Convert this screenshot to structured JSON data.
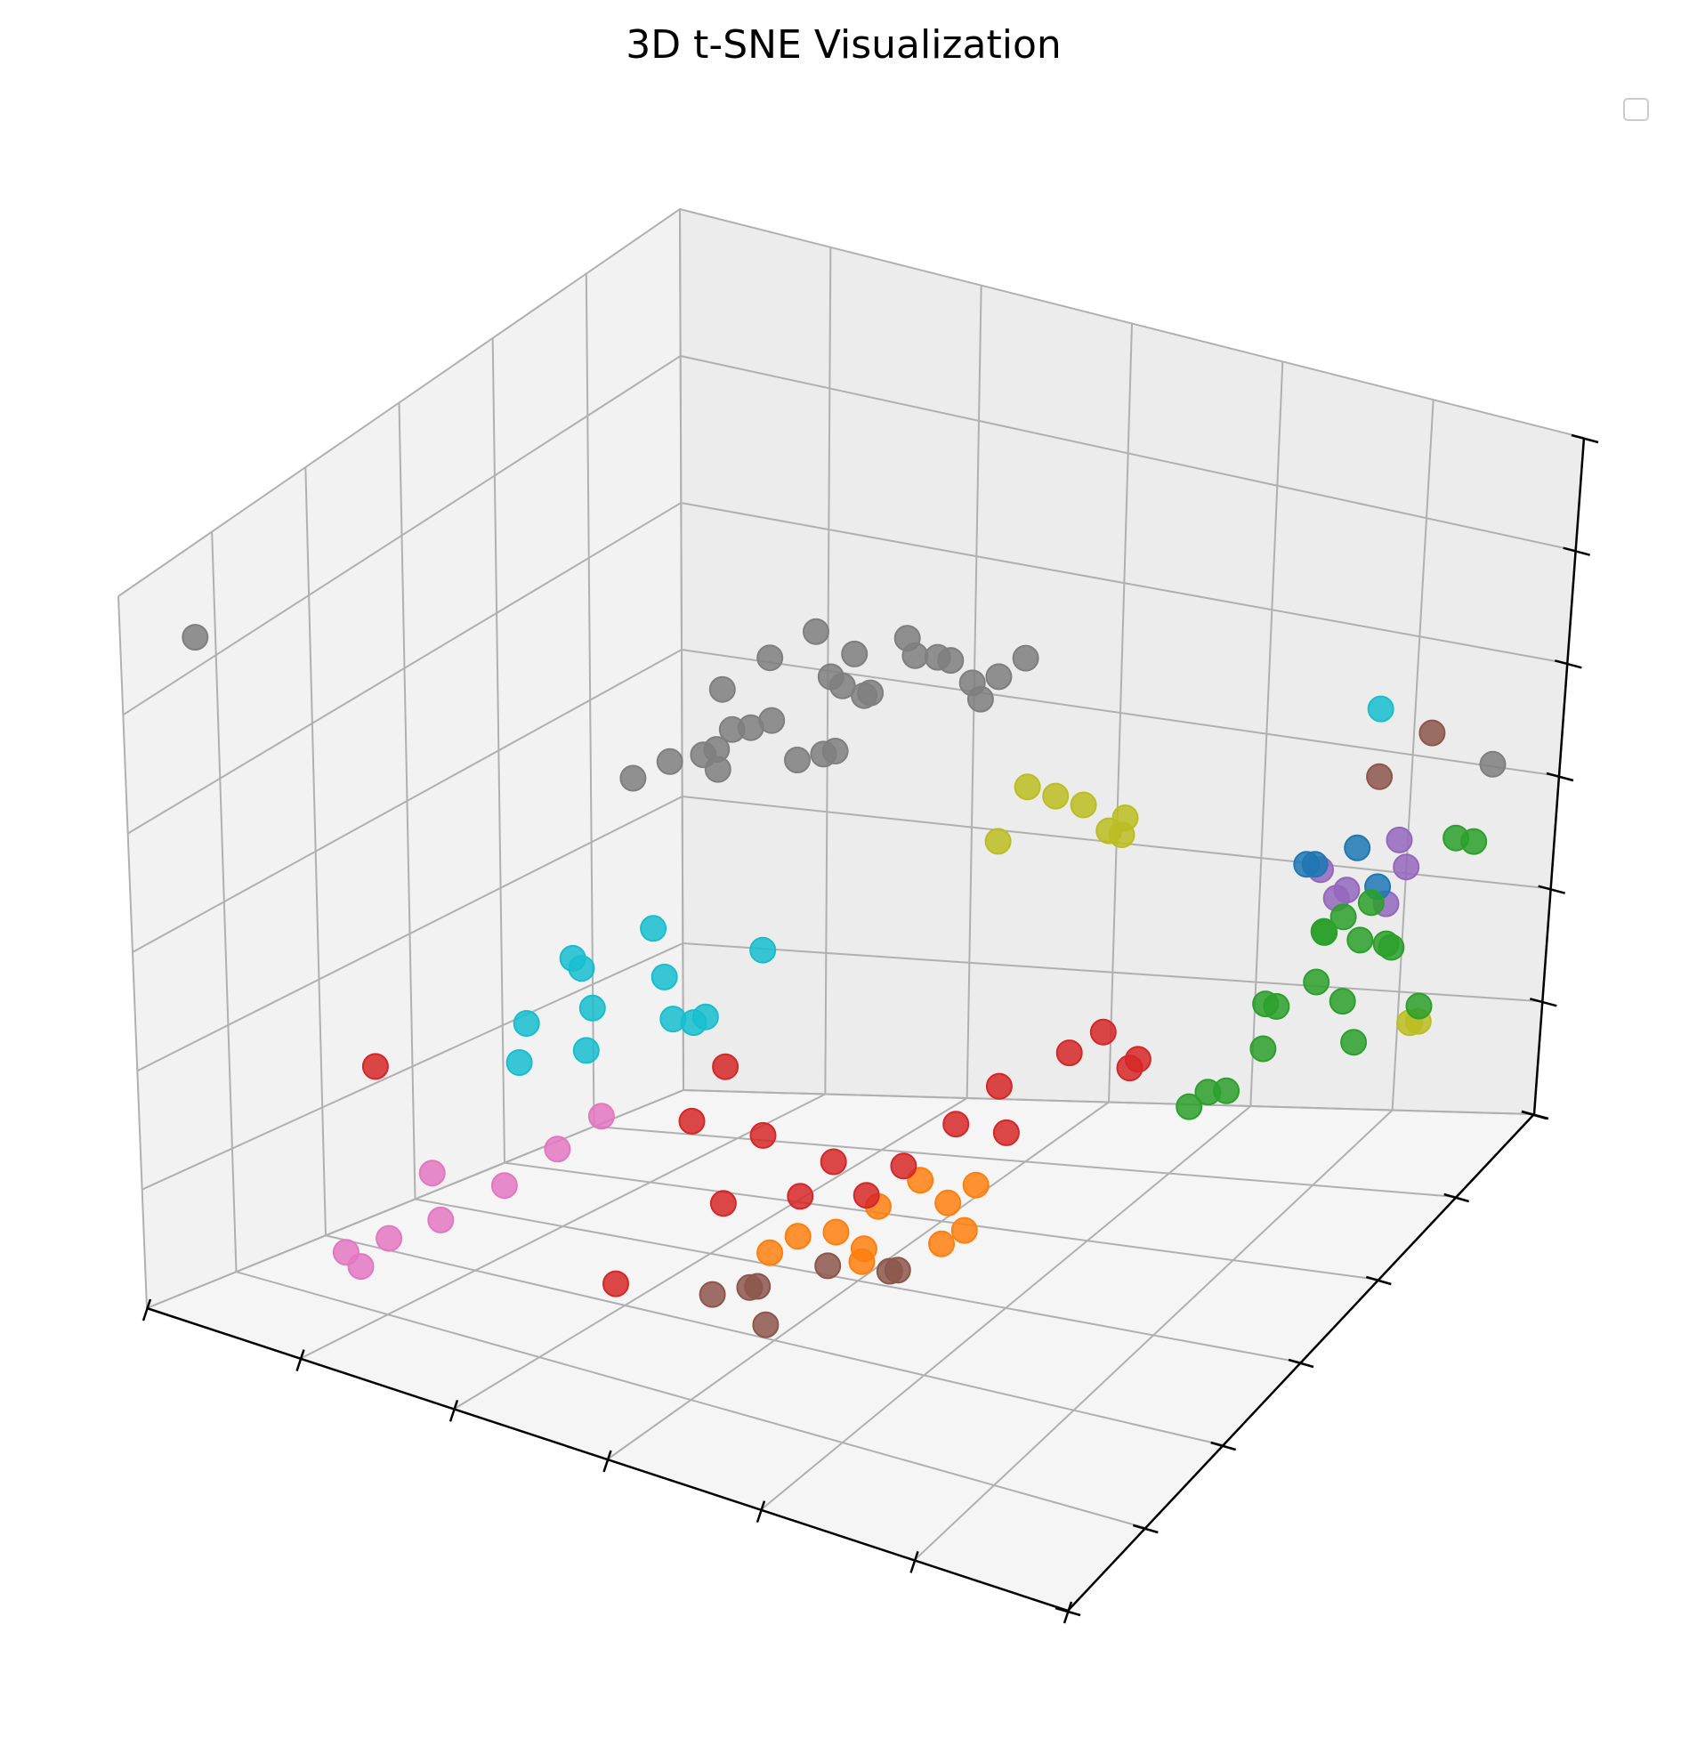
{
  "chart_data": {
    "type": "scatter",
    "projection": "3d",
    "title": "3D t-SNE Visualization",
    "xlabel": "",
    "ylabel": "",
    "zlabel": "",
    "tick_labels_shown": false,
    "grid": true,
    "legend": {
      "placement": "top-right",
      "entries": []
    },
    "xlim": [
      0,
      1
    ],
    "ylim": [
      0,
      1
    ],
    "zlim": [
      0,
      1
    ],
    "colors": {
      "blue": "#1f77b4",
      "orange": "#ff7f0e",
      "green": "#2ca02c",
      "red": "#d62728",
      "purple": "#9467bd",
      "brown": "#8c564b",
      "pink": "#e377c2",
      "gray": "#7f7f7f",
      "olive": "#bcbd22",
      "cyan": "#17becf"
    },
    "series": [
      {
        "color_key": "gray",
        "points": [
          [
            0.4,
            0.5,
            0.85
          ],
          [
            0.45,
            0.55,
            0.8
          ],
          [
            0.48,
            0.52,
            0.88
          ],
          [
            0.42,
            0.58,
            0.78
          ],
          [
            0.5,
            0.6,
            0.83
          ],
          [
            0.52,
            0.55,
            0.9
          ],
          [
            0.38,
            0.62,
            0.8
          ],
          [
            0.55,
            0.58,
            0.86
          ],
          [
            0.47,
            0.48,
            0.76
          ],
          [
            0.35,
            0.55,
            0.7
          ],
          [
            0.3,
            0.6,
            0.65
          ],
          [
            0.43,
            0.5,
            0.72
          ],
          [
            0.58,
            0.62,
            0.82
          ],
          [
            0.6,
            0.55,
            0.85
          ],
          [
            0.36,
            0.48,
            0.8
          ],
          [
            0.33,
            0.52,
            0.68
          ],
          [
            0.28,
            0.58,
            0.62
          ],
          [
            0.54,
            0.64,
            0.78
          ],
          [
            0.62,
            0.6,
            0.88
          ],
          [
            0.5,
            0.45,
            0.8
          ],
          [
            0.39,
            0.42,
            0.74
          ],
          [
            0.57,
            0.52,
            0.92
          ],
          [
            0.25,
            0.5,
            0.62
          ],
          [
            0.44,
            0.62,
            0.74
          ],
          [
            0.41,
            0.66,
            0.7
          ],
          [
            0.46,
            0.4,
            0.86
          ],
          [
            0.32,
            0.45,
            0.7
          ],
          [
            0.05,
            0.05,
            0.95
          ],
          [
            0.95,
            0.95,
            0.55
          ]
        ]
      },
      {
        "color_key": "cyan",
        "points": [
          [
            0.3,
            0.3,
            0.5
          ],
          [
            0.35,
            0.25,
            0.48
          ],
          [
            0.28,
            0.35,
            0.45
          ],
          [
            0.4,
            0.3,
            0.52
          ],
          [
            0.33,
            0.4,
            0.5
          ],
          [
            0.38,
            0.35,
            0.42
          ],
          [
            0.26,
            0.28,
            0.4
          ],
          [
            0.42,
            0.32,
            0.45
          ],
          [
            0.36,
            0.22,
            0.44
          ],
          [
            0.31,
            0.18,
            0.42
          ],
          [
            0.45,
            0.4,
            0.52
          ],
          [
            0.41,
            0.36,
            0.43
          ],
          [
            0.9,
            0.8,
            0.75
          ]
        ]
      },
      {
        "color_key": "olive",
        "points": [
          [
            0.6,
            0.7,
            0.6
          ],
          [
            0.62,
            0.72,
            0.58
          ],
          [
            0.58,
            0.68,
            0.62
          ],
          [
            0.65,
            0.75,
            0.55
          ],
          [
            0.63,
            0.78,
            0.5
          ],
          [
            0.66,
            0.7,
            0.57
          ],
          [
            0.56,
            0.66,
            0.55
          ],
          [
            0.9,
            0.9,
            0.2
          ],
          [
            0.92,
            0.88,
            0.22
          ]
        ]
      },
      {
        "color_key": "green",
        "points": [
          [
            0.85,
            0.8,
            0.4
          ],
          [
            0.88,
            0.82,
            0.38
          ],
          [
            0.86,
            0.78,
            0.42
          ],
          [
            0.9,
            0.85,
            0.35
          ],
          [
            0.92,
            0.8,
            0.4
          ],
          [
            0.87,
            0.75,
            0.37
          ],
          [
            0.83,
            0.72,
            0.35
          ],
          [
            0.89,
            0.77,
            0.33
          ],
          [
            0.84,
            0.7,
            0.3
          ],
          [
            0.95,
            0.88,
            0.5
          ],
          [
            0.96,
            0.9,
            0.48
          ],
          [
            0.8,
            0.8,
            0.28
          ],
          [
            0.91,
            0.76,
            0.28
          ],
          [
            0.93,
            0.86,
            0.26
          ],
          [
            0.78,
            0.7,
            0.22
          ],
          [
            0.79,
            0.72,
            0.21
          ],
          [
            0.77,
            0.68,
            0.21
          ],
          [
            0.88,
            0.84,
            0.42
          ],
          [
            0.86,
            0.82,
            0.41
          ]
        ]
      },
      {
        "color_key": "purple",
        "points": [
          [
            0.85,
            0.95,
            0.42
          ],
          [
            0.87,
            0.93,
            0.4
          ],
          [
            0.82,
            0.9,
            0.38
          ],
          [
            0.8,
            0.88,
            0.42
          ],
          [
            0.83,
            0.86,
            0.4
          ],
          [
            0.86,
            0.91,
            0.36
          ]
        ]
      },
      {
        "color_key": "blue",
        "points": [
          [
            0.8,
            0.85,
            0.45
          ],
          [
            0.84,
            0.88,
            0.46
          ],
          [
            0.82,
            0.83,
            0.47
          ],
          [
            0.86,
            0.89,
            0.4
          ]
        ]
      },
      {
        "color_key": "brown",
        "points": [
          [
            0.85,
            0.9,
            0.55
          ],
          [
            0.88,
            0.95,
            0.58
          ],
          [
            0.5,
            0.3,
            0.1
          ],
          [
            0.55,
            0.35,
            0.12
          ],
          [
            0.48,
            0.32,
            0.08
          ],
          [
            0.52,
            0.28,
            0.06
          ],
          [
            0.6,
            0.4,
            0.1
          ],
          [
            0.58,
            0.42,
            0.08
          ],
          [
            0.45,
            0.3,
            0.07
          ]
        ]
      },
      {
        "color_key": "orange",
        "points": [
          [
            0.55,
            0.45,
            0.15
          ],
          [
            0.58,
            0.48,
            0.18
          ],
          [
            0.52,
            0.42,
            0.12
          ],
          [
            0.6,
            0.5,
            0.14
          ],
          [
            0.5,
            0.38,
            0.13
          ],
          [
            0.62,
            0.52,
            0.16
          ],
          [
            0.56,
            0.4,
            0.1
          ],
          [
            0.48,
            0.36,
            0.11
          ],
          [
            0.54,
            0.44,
            0.09
          ],
          [
            0.63,
            0.48,
            0.12
          ],
          [
            0.61,
            0.47,
            0.1
          ]
        ]
      },
      {
        "color_key": "red",
        "points": [
          [
            0.6,
            0.6,
            0.25
          ],
          [
            0.65,
            0.65,
            0.28
          ],
          [
            0.58,
            0.55,
            0.22
          ],
          [
            0.62,
            0.58,
            0.2
          ],
          [
            0.55,
            0.5,
            0.18
          ],
          [
            0.5,
            0.45,
            0.2
          ],
          [
            0.45,
            0.4,
            0.25
          ],
          [
            0.4,
            0.35,
            0.28
          ],
          [
            0.48,
            0.42,
            0.16
          ],
          [
            0.42,
            0.38,
            0.35
          ],
          [
            0.2,
            0.1,
            0.4
          ],
          [
            0.4,
            0.2,
            0.12
          ],
          [
            0.7,
            0.7,
            0.25
          ],
          [
            0.68,
            0.72,
            0.22
          ],
          [
            0.66,
            0.7,
            0.28
          ],
          [
            0.52,
            0.48,
            0.14
          ],
          [
            0.44,
            0.34,
            0.18
          ]
        ]
      },
      {
        "color_key": "pink",
        "points": [
          [
            0.2,
            0.2,
            0.2
          ],
          [
            0.22,
            0.18,
            0.15
          ],
          [
            0.25,
            0.25,
            0.18
          ],
          [
            0.18,
            0.15,
            0.12
          ],
          [
            0.28,
            0.3,
            0.22
          ],
          [
            0.3,
            0.35,
            0.25
          ],
          [
            0.15,
            0.12,
            0.1
          ],
          [
            0.16,
            0.13,
            0.08
          ]
        ]
      }
    ]
  }
}
